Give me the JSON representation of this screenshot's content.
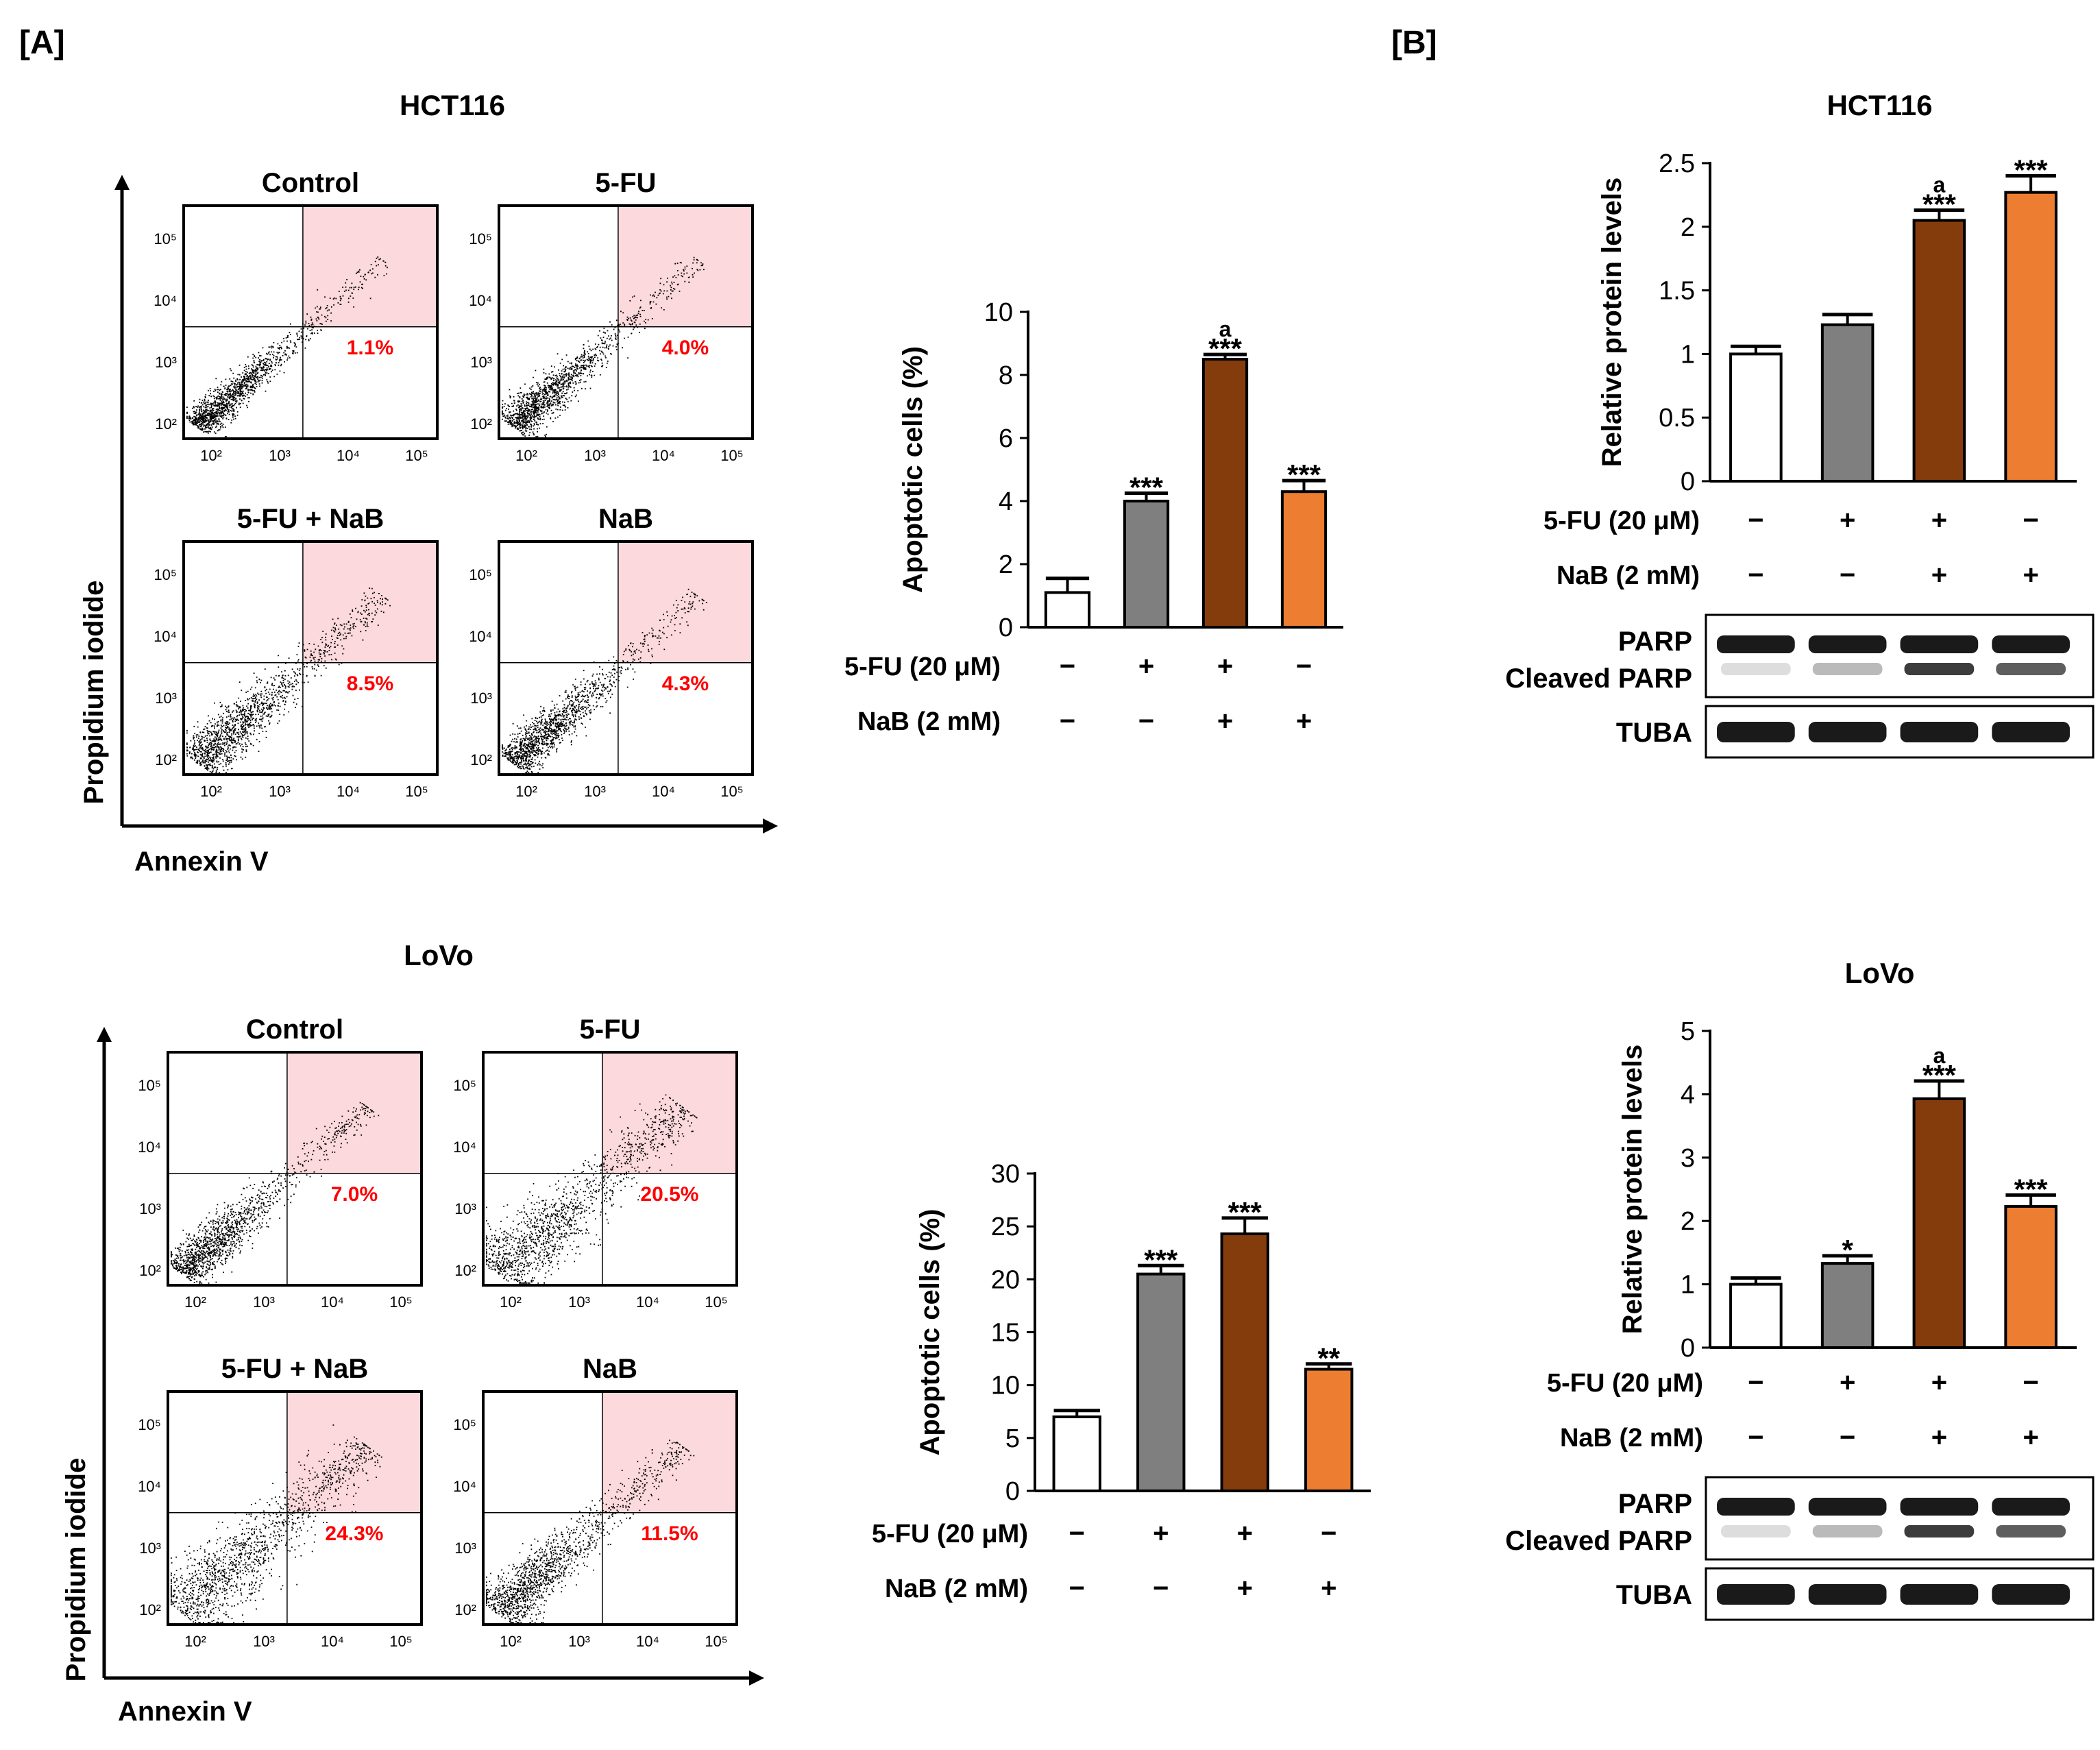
{
  "panels": {
    "A": {
      "label": "[A]"
    },
    "B": {
      "label": "[B]"
    }
  },
  "colors": {
    "control": "#ffffff",
    "fu": "#7f7f7f",
    "combo": "#843c0c",
    "nab": "#ed7d31",
    "gate": "#fbd9dc",
    "percent": "#ff0000"
  },
  "cell_lines": [
    {
      "name": "HCT116",
      "flow": {
        "title": "HCT116",
        "x_axis_label": "Annexin V",
        "y_axis_label": "Propidium iodide",
        "tick_labels": [
          "10²",
          "10³",
          "10⁴",
          "10⁵"
        ],
        "plots": [
          {
            "title": "Control",
            "percent": "1.1%",
            "value": 1.1
          },
          {
            "title": "5-FU",
            "percent": "4.0%",
            "value": 4.0
          },
          {
            "title": "5-FU + NaB",
            "percent": "8.5%",
            "value": 8.5
          },
          {
            "title": "NaB",
            "percent": "4.3%",
            "value": 4.3
          }
        ]
      },
      "row_labels": [
        "5-FU (20 μM)",
        "NaB (2 mM)"
      ],
      "treatments": [
        [
          "−",
          "+",
          "+",
          "−"
        ],
        [
          "−",
          "−",
          "+",
          "+"
        ]
      ],
      "western": {
        "bands": [
          "PARP",
          "Cleaved PARP",
          "TUBA"
        ]
      }
    },
    {
      "name": "LoVo",
      "flow": {
        "title": "LoVo",
        "x_axis_label": "Annexin V",
        "y_axis_label": "Propidium iodide",
        "tick_labels": [
          "10²",
          "10³",
          "10⁴",
          "10⁵"
        ],
        "plots": [
          {
            "title": "Control",
            "percent": "7.0%",
            "value": 7.0
          },
          {
            "title": "5-FU",
            "percent": "20.5%",
            "value": 20.5
          },
          {
            "title": "5-FU + NaB",
            "percent": "24.3%",
            "value": 24.3
          },
          {
            "title": "NaB",
            "percent": "11.5%",
            "value": 11.5
          }
        ]
      },
      "row_labels": [
        "5-FU (20 μM)",
        "NaB (2 mM)"
      ],
      "treatments": [
        [
          "−",
          "+",
          "+",
          "−"
        ],
        [
          "−",
          "−",
          "+",
          "+"
        ]
      ],
      "western": {
        "bands": [
          "PARP",
          "Cleaved PARP",
          "TUBA"
        ]
      }
    }
  ],
  "chart_data": [
    {
      "id": "hct116-apoptosis",
      "type": "bar",
      "title": "",
      "ylabel": "Apoptotic cells (%)",
      "xlabel": "",
      "ylim": [
        0,
        10
      ],
      "yticks": [
        0,
        2,
        4,
        6,
        8,
        10
      ],
      "categories": [
        "Control",
        "5-FU",
        "5-FU + NaB",
        "NaB"
      ],
      "values": [
        1.1,
        4.0,
        8.5,
        4.3
      ],
      "errors": [
        0.45,
        0.25,
        0.15,
        0.35
      ],
      "annotations": [
        "",
        "***",
        "***",
        "***"
      ],
      "superscripts": [
        "",
        "",
        "a",
        ""
      ]
    },
    {
      "id": "hct116-parp",
      "type": "bar",
      "title": "HCT116",
      "ylabel": "Relative protein levels",
      "xlabel": "",
      "ylim": [
        0,
        2.5
      ],
      "yticks": [
        0,
        0.5,
        1,
        1.5,
        2,
        2.5
      ],
      "categories": [
        "Control",
        "5-FU",
        "5-FU + NaB",
        "NaB"
      ],
      "values": [
        1.0,
        1.23,
        2.05,
        2.27
      ],
      "errors": [
        0.06,
        0.08,
        0.08,
        0.13
      ],
      "annotations": [
        "",
        "",
        "***",
        "***"
      ],
      "superscripts": [
        "",
        "",
        "a",
        ""
      ]
    },
    {
      "id": "lovo-apoptosis",
      "type": "bar",
      "title": "",
      "ylabel": "Apoptotic cells (%)",
      "xlabel": "",
      "ylim": [
        0,
        30
      ],
      "yticks": [
        0,
        5,
        10,
        15,
        20,
        25,
        30
      ],
      "categories": [
        "Control",
        "5-FU",
        "5-FU + NaB",
        "NaB"
      ],
      "values": [
        7.0,
        20.5,
        24.3,
        11.5
      ],
      "errors": [
        0.6,
        0.8,
        1.5,
        0.5
      ],
      "annotations": [
        "",
        "***",
        "***",
        "**"
      ],
      "superscripts": [
        "",
        "",
        "",
        ""
      ]
    },
    {
      "id": "lovo-parp",
      "type": "bar",
      "title": "LoVo",
      "ylabel": "Relative protein levels",
      "xlabel": "",
      "ylim": [
        0,
        5
      ],
      "yticks": [
        0,
        1,
        2,
        3,
        4,
        5
      ],
      "categories": [
        "Control",
        "5-FU",
        "5-FU + NaB",
        "NaB"
      ],
      "values": [
        1.0,
        1.33,
        3.93,
        2.23
      ],
      "errors": [
        0.1,
        0.12,
        0.28,
        0.18
      ],
      "annotations": [
        "",
        "*",
        "***",
        "***"
      ],
      "superscripts": [
        "",
        "",
        "a",
        ""
      ]
    }
  ]
}
